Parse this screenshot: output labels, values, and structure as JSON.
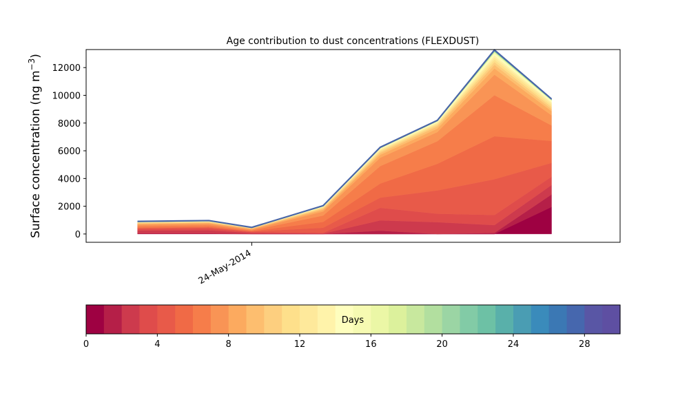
{
  "chart_data": {
    "type": "area",
    "title": "Age contribution to dust concentrations (FLEXDUST)",
    "ylabel": "Surface concentration (ng m",
    "ylabel_superscript": "−3",
    "ylabel_suffix": ")",
    "xlabel": "",
    "ylim": [
      -600,
      13300
    ],
    "yticks": [
      0,
      2000,
      4000,
      6000,
      8000,
      10000,
      12000
    ],
    "xlim": [
      -0.9,
      8.45
    ],
    "xticks": [
      {
        "x": 2,
        "label": "24-May-2014"
      }
    ],
    "grid": false,
    "x": [
      0,
      1.25,
      2,
      3.25,
      4.25,
      5.25,
      6.25,
      7.25
    ],
    "layer_colors": [
      "#9e0142",
      "#b51f48",
      "#cd3a4d",
      "#df4c4b",
      "#e85a49",
      "#f06a46",
      "#f67d4a",
      "#f99455",
      "#fcaa5f",
      "#fdbe6f",
      "#fdcf7f",
      "#fee08b",
      "#fee99b",
      "#fff3aa",
      "#fefebe",
      "#f6fab2",
      "#ebf7a6",
      "#dcf19c",
      "#c8e89e",
      "#b2df9f",
      "#9bd5a4",
      "#82cba6",
      "#6dc1a5",
      "#59b0aa",
      "#4a9db3",
      "#3a8bbb",
      "#3b78b4",
      "#4667ae",
      "#5956a5",
      "#5e4fa2"
    ],
    "layer_days": [
      0,
      1,
      2,
      3,
      4,
      5,
      6,
      7,
      8,
      9,
      10,
      11,
      12,
      13,
      14,
      15,
      16,
      17,
      18,
      19,
      20,
      21,
      22,
      23,
      24,
      25,
      26,
      27,
      28,
      29
    ],
    "layers": [
      [
        10,
        10,
        0,
        0,
        0,
        0,
        0,
        1950
      ],
      [
        40,
        40,
        5,
        0,
        240,
        0,
        80,
        900
      ],
      [
        200,
        220,
        70,
        30,
        740,
        850,
        560,
        680
      ],
      [
        110,
        130,
        60,
        60,
        910,
        610,
        730,
        600
      ],
      [
        60,
        70,
        45,
        360,
        730,
        1680,
        2580,
        1000
      ],
      [
        40,
        50,
        25,
        420,
        1020,
        1920,
        3100,
        1580
      ],
      [
        110,
        110,
        60,
        460,
        1260,
        1630,
        2960,
        1120
      ],
      [
        100,
        100,
        60,
        290,
        600,
        660,
        1480,
        730
      ],
      [
        60,
        60,
        40,
        120,
        210,
        250,
        450,
        300
      ],
      [
        40,
        40,
        25,
        80,
        130,
        160,
        260,
        150
      ],
      [
        30,
        30,
        20,
        60,
        100,
        110,
        200,
        150
      ],
      [
        25,
        25,
        15,
        40,
        80,
        80,
        180,
        140
      ],
      [
        15,
        15,
        10,
        25,
        60,
        70,
        160,
        130
      ],
      [
        10,
        10,
        5,
        20,
        50,
        50,
        150,
        90
      ],
      [
        8,
        8,
        4,
        15,
        30,
        30,
        100,
        60
      ],
      [
        5,
        5,
        3,
        10,
        20,
        20,
        70,
        40
      ],
      [
        4,
        4,
        2,
        6,
        12,
        12,
        40,
        20
      ],
      [
        3,
        3,
        2,
        5,
        8,
        8,
        25,
        12
      ],
      [
        3,
        3,
        2,
        4,
        6,
        6,
        20,
        10
      ],
      [
        3,
        3,
        2,
        4,
        5,
        5,
        15,
        8
      ],
      [
        3,
        3,
        2,
        4,
        5,
        5,
        15,
        8
      ],
      [
        3,
        3,
        2,
        3,
        4,
        4,
        12,
        8
      ],
      [
        3,
        3,
        2,
        3,
        4,
        4,
        12,
        8
      ],
      [
        3,
        3,
        2,
        3,
        4,
        4,
        10,
        6
      ],
      [
        3,
        3,
        2,
        3,
        4,
        4,
        10,
        6
      ],
      [
        3,
        3,
        2,
        3,
        4,
        4,
        10,
        6
      ],
      [
        3,
        3,
        2,
        3,
        4,
        4,
        10,
        6
      ],
      [
        3,
        3,
        2,
        3,
        4,
        4,
        10,
        6
      ],
      [
        3,
        3,
        2,
        3,
        4,
        4,
        10,
        6
      ],
      [
        3,
        3,
        2,
        3,
        4,
        4,
        10,
        6
      ]
    ],
    "total_line_color": "#4a66a8",
    "colorbar": {
      "label": "Days",
      "range": [
        0,
        30
      ],
      "ticks": [
        0,
        4,
        8,
        12,
        16,
        20,
        24,
        28
      ]
    }
  }
}
